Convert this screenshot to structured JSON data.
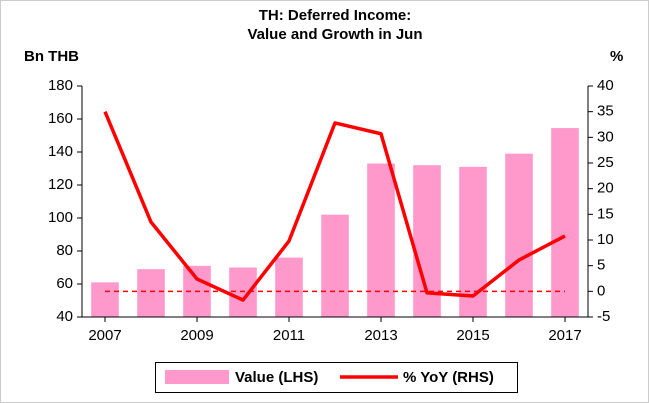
{
  "chart_data": {
    "type": "combo",
    "title": [
      "TH: Deferred Income:",
      "Value and Growth in Jun"
    ],
    "y_label": "Bn THB",
    "y2_label": "%",
    "x": [
      2007,
      2008,
      2009,
      2010,
      2011,
      2012,
      2013,
      2014,
      2015,
      2016,
      2017
    ],
    "xlim": [
      2006.5,
      2017.5
    ],
    "xticks": [
      2007,
      2009,
      2011,
      2013,
      2015,
      2017
    ],
    "ylim": [
      40,
      180
    ],
    "yticks": [
      40,
      60,
      80,
      100,
      120,
      140,
      160,
      180
    ],
    "y2lim": [
      -5,
      40
    ],
    "y2ticks": [
      -5,
      0,
      5,
      10,
      15,
      20,
      25,
      30,
      35,
      40
    ],
    "y2_reference": 0,
    "series": [
      {
        "name": "Value (LHS)",
        "type": "bar",
        "color": "#ff99cc",
        "values": [
          61,
          69,
          71,
          70,
          76,
          102,
          133,
          132,
          131,
          139,
          154.5
        ]
      },
      {
        "name": "% YoY (RHS)",
        "type": "line",
        "axis": "y2",
        "color": "#ff0000",
        "values": [
          35,
          13.5,
          2.4,
          -1.7,
          9.8,
          32.8,
          30.7,
          -0.3,
          -0.9,
          6.1,
          10.8
        ]
      }
    ]
  }
}
